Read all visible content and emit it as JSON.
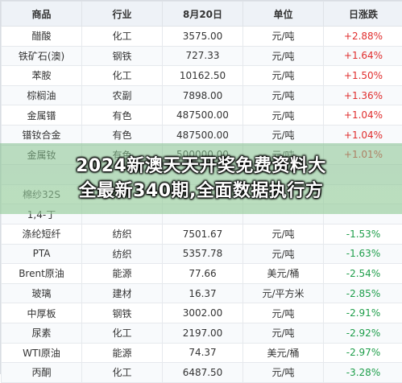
{
  "table": {
    "headers": [
      "商品",
      "行业",
      "8月20日",
      "单位",
      "日涨跌"
    ],
    "rows": [
      {
        "name": "醋酸",
        "industry": "化工",
        "price": "3575.00",
        "unit": "元/吨",
        "change": "+2.88%",
        "dir": "up"
      },
      {
        "name": "铁矿石(澳)",
        "industry": "钢铁",
        "price": "727.33",
        "unit": "元/吨",
        "change": "+1.64%",
        "dir": "up"
      },
      {
        "name": "苯胺",
        "industry": "化工",
        "price": "10162.50",
        "unit": "元/吨",
        "change": "+1.50%",
        "dir": "up"
      },
      {
        "name": "棕榈油",
        "industry": "农副",
        "price": "7898.00",
        "unit": "元/吨",
        "change": "+1.36%",
        "dir": "up"
      },
      {
        "name": "金属镨",
        "industry": "有色",
        "price": "487500.00",
        "unit": "元/吨",
        "change": "+1.04%",
        "dir": "up"
      },
      {
        "name": "镨钕合金",
        "industry": "有色",
        "price": "487500.00",
        "unit": "元/吨",
        "change": "+1.04%",
        "dir": "up"
      },
      {
        "name": "金属钕",
        "industry": "有色",
        "price": "500000.00",
        "unit": "元/吨",
        "change": "+1.01%",
        "dir": "up"
      },
      {
        "name": "",
        "industry": "",
        "price": "",
        "unit": "",
        "change": "",
        "dir": "down"
      },
      {
        "name": "棉纱32S",
        "industry": "纺织",
        "price": "",
        "unit": "",
        "change": "",
        "dir": "down"
      },
      {
        "name": "1,4-丁",
        "industry": "",
        "price": "",
        "unit": "",
        "change": "",
        "dir": "down"
      },
      {
        "name": "涤纶短纤",
        "industry": "纺织",
        "price": "7501.67",
        "unit": "元/吨",
        "change": "-1.53%",
        "dir": "down"
      },
      {
        "name": "PTA",
        "industry": "纺织",
        "price": "5357.78",
        "unit": "元/吨",
        "change": "-1.63%",
        "dir": "down"
      },
      {
        "name": "Brent原油",
        "industry": "能源",
        "price": "77.66",
        "unit": "美元/桶",
        "change": "-2.54%",
        "dir": "down"
      },
      {
        "name": "玻璃",
        "industry": "建材",
        "price": "16.37",
        "unit": "元/平方米",
        "change": "-2.85%",
        "dir": "down"
      },
      {
        "name": "中厚板",
        "industry": "钢铁",
        "price": "3002.00",
        "unit": "元/吨",
        "change": "-2.91%",
        "dir": "down"
      },
      {
        "name": "尿素",
        "industry": "化工",
        "price": "2197.00",
        "unit": "元/吨",
        "change": "-2.92%",
        "dir": "down"
      },
      {
        "name": "WTI原油",
        "industry": "能源",
        "price": "74.37",
        "unit": "美元/桶",
        "change": "-2.97%",
        "dir": "down"
      },
      {
        "name": "丙酮",
        "industry": "化工",
        "price": "6487.50",
        "unit": "元/吨",
        "change": "-3.28%",
        "dir": "down"
      }
    ]
  },
  "banner": {
    "line1": "2024新澳天天开奖免费资料大",
    "line2": "全最新340期,全面数据执行方"
  },
  "colors": {
    "up": "#e02d2d",
    "down": "#1e9e4a",
    "header_bg": "#eef2f7",
    "banner_green": "#8fc895"
  }
}
